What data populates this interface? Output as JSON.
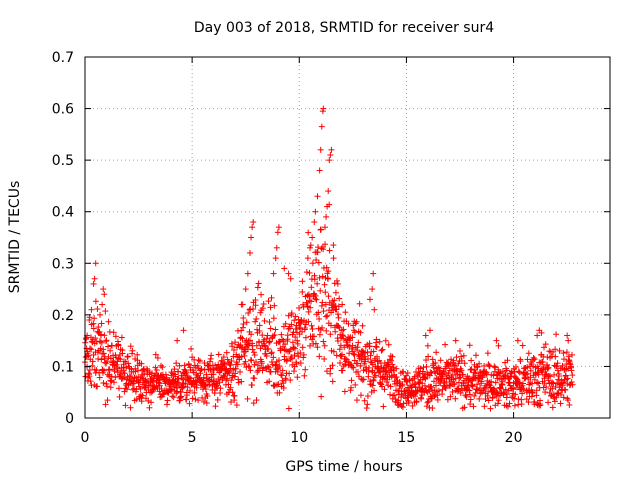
{
  "chart_data": {
    "type": "scatter",
    "title": "Day 003 of 2018, SRMTID for receiver sur4",
    "xlabel": "GPS time / hours",
    "ylabel": "SRMTID / TECUs",
    "xlim": [
      0,
      24.5
    ],
    "ylim": [
      0,
      0.7
    ],
    "xticks": [
      0,
      5,
      10,
      15,
      20
    ],
    "xtick_labels": [
      "0",
      "5",
      "10",
      "15",
      "20"
    ],
    "yticks": [
      0,
      0.1,
      0.2,
      0.3,
      0.4,
      0.5,
      0.6,
      0.7
    ],
    "ytick_labels": [
      "0",
      "0.1",
      "0.2",
      "0.3",
      "0.4",
      "0.5",
      "0.6",
      "0.7"
    ],
    "grid": true,
    "marker": "+",
    "marker_color": "#ff0000",
    "series": [
      {
        "name": "sur4",
        "x_range": [
          0,
          22.75
        ],
        "profile": [
          [
            0.0,
            0.13,
            0.03
          ],
          [
            0.5,
            0.14,
            0.04
          ],
          [
            1.0,
            0.12,
            0.035
          ],
          [
            1.5,
            0.1,
            0.025
          ],
          [
            2.0,
            0.085,
            0.025
          ],
          [
            3.0,
            0.07,
            0.02
          ],
          [
            4.0,
            0.06,
            0.018
          ],
          [
            5.0,
            0.08,
            0.022
          ],
          [
            6.0,
            0.075,
            0.02
          ],
          [
            7.0,
            0.09,
            0.03
          ],
          [
            7.5,
            0.15,
            0.05
          ],
          [
            8.0,
            0.16,
            0.05
          ],
          [
            8.5,
            0.14,
            0.045
          ],
          [
            9.0,
            0.12,
            0.045
          ],
          [
            9.5,
            0.13,
            0.045
          ],
          [
            10.0,
            0.16,
            0.05
          ],
          [
            10.5,
            0.22,
            0.06
          ],
          [
            11.0,
            0.25,
            0.08
          ],
          [
            11.5,
            0.22,
            0.07
          ],
          [
            12.0,
            0.16,
            0.05
          ],
          [
            12.5,
            0.12,
            0.04
          ],
          [
            13.0,
            0.11,
            0.035
          ],
          [
            14.0,
            0.09,
            0.03
          ],
          [
            15.0,
            0.055,
            0.015
          ],
          [
            16.0,
            0.07,
            0.025
          ],
          [
            17.0,
            0.075,
            0.025
          ],
          [
            18.0,
            0.07,
            0.025
          ],
          [
            19.0,
            0.065,
            0.02
          ],
          [
            20.0,
            0.065,
            0.02
          ],
          [
            21.0,
            0.08,
            0.03
          ],
          [
            22.0,
            0.08,
            0.03
          ],
          [
            22.75,
            0.08,
            0.03
          ]
        ],
        "outliers": [
          [
            0.1,
            0.16
          ],
          [
            0.2,
            0.19
          ],
          [
            0.3,
            0.21
          ],
          [
            0.4,
            0.26
          ],
          [
            0.45,
            0.27
          ],
          [
            0.5,
            0.3
          ],
          [
            0.7,
            0.2
          ],
          [
            0.8,
            0.22
          ],
          [
            0.85,
            0.25
          ],
          [
            0.9,
            0.24
          ],
          [
            4.3,
            0.15
          ],
          [
            4.6,
            0.17
          ],
          [
            7.3,
            0.22
          ],
          [
            7.5,
            0.25
          ],
          [
            7.6,
            0.28
          ],
          [
            7.7,
            0.32
          ],
          [
            7.75,
            0.35
          ],
          [
            7.8,
            0.37
          ],
          [
            7.85,
            0.38
          ],
          [
            8.8,
            0.28
          ],
          [
            8.9,
            0.31
          ],
          [
            8.95,
            0.33
          ],
          [
            9.0,
            0.36
          ],
          [
            9.05,
            0.37
          ],
          [
            9.5,
            0.28
          ],
          [
            9.6,
            0.27
          ],
          [
            9.3,
            0.29
          ],
          [
            10.4,
            0.31
          ],
          [
            10.5,
            0.33
          ],
          [
            10.6,
            0.35
          ],
          [
            10.7,
            0.38
          ],
          [
            10.75,
            0.4
          ],
          [
            10.85,
            0.43
          ],
          [
            10.95,
            0.48
          ],
          [
            11.0,
            0.52
          ],
          [
            11.05,
            0.565
          ],
          [
            11.1,
            0.595
          ],
          [
            11.12,
            0.6
          ],
          [
            11.3,
            0.41
          ],
          [
            11.35,
            0.44
          ],
          [
            11.4,
            0.5
          ],
          [
            11.45,
            0.51
          ],
          [
            11.5,
            0.52
          ],
          [
            11.2,
            0.37
          ],
          [
            11.25,
            0.39
          ],
          [
            11.6,
            0.31
          ],
          [
            11.8,
            0.26
          ],
          [
            12.0,
            0.22
          ],
          [
            13.3,
            0.23
          ],
          [
            13.4,
            0.25
          ],
          [
            13.45,
            0.28
          ],
          [
            13.5,
            0.21
          ],
          [
            15.9,
            0.16
          ],
          [
            16.0,
            0.14
          ],
          [
            16.1,
            0.17
          ],
          [
            17.3,
            0.15
          ],
          [
            17.5,
            0.13
          ],
          [
            19.2,
            0.15
          ],
          [
            19.3,
            0.14
          ],
          [
            20.2,
            0.15
          ],
          [
            21.1,
            0.16
          ],
          [
            21.2,
            0.17
          ],
          [
            21.3,
            0.165
          ],
          [
            22.5,
            0.16
          ],
          [
            22.55,
            0.15
          ]
        ]
      }
    ]
  }
}
